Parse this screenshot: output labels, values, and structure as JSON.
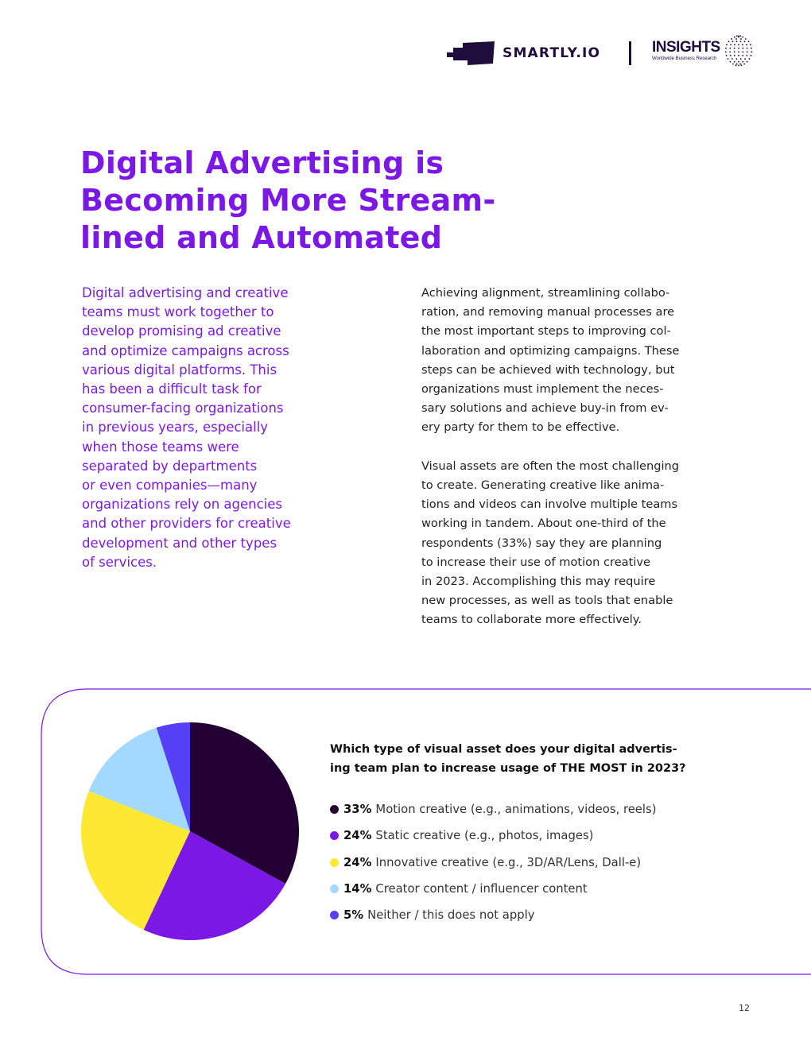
{
  "header": {
    "brand": "SMARTLY.IO",
    "partner": "INSIGHTS",
    "partner_tagline": "Worldwide Business Research"
  },
  "title_lines": [
    "Digital Advertising is",
    "Becoming More Stream-",
    "lined and Automated"
  ],
  "lead_lines": [
    "Digital advertising and creative",
    "teams must work together to",
    "develop promising ad creative",
    "and optimize campaigns across",
    "various digital platforms. This",
    "has been a difficult task for",
    "consumer-facing organizations",
    "in previous years, especially",
    "when those teams were",
    "separated by departments",
    "or even companies—many",
    "organizations rely on agencies",
    "and other providers for creative",
    "development and other types",
    "of services."
  ],
  "body_paragraph_1": [
    "Achieving alignment, streamlining collabo-",
    "ration, and removing manual processes are",
    "the most important steps to improving col-",
    "laboration and optimizing campaigns. These",
    "steps can be achieved with technology, but",
    "organizations must implement the neces-",
    "sary solutions and achieve buy-in from ev-",
    "ery party for them to be effective."
  ],
  "body_paragraph_2": [
    "Visual assets are often the most challenging",
    "to create. Generating creative like anima-",
    "tions and videos can involve multiple teams",
    "working in tandem. About one-third of the",
    "respondents (33%) say they are planning",
    "to increase their use of motion creative",
    "in 2023. Accomplishing this may require",
    "new processes, as well as tools that enable",
    "teams to collaborate more effectively."
  ],
  "chart_data": {
    "type": "pie",
    "title_lines": [
      "Which type of visual asset does your digital advertis-",
      "ing team plan to increase usage of THE MOST in 2023?"
    ],
    "unit": "%",
    "slices": [
      {
        "label": "Motion creative (e.g., animations, videos, reels)",
        "pct_label": "33%",
        "value": 33,
        "color": "#230033"
      },
      {
        "label": "Static creative (e.g., photos, images)",
        "pct_label": "24%",
        "value": 24,
        "color": "#7b18e6"
      },
      {
        "label": "Innovative creative (e.g., 3D/AR/Lens, Dall-e)",
        "pct_label": "24%",
        "value": 24,
        "color": "#fde832"
      },
      {
        "label": "Creator content / influencer content",
        "pct_label": "14%",
        "value": 14,
        "color": "#a3d8ff"
      },
      {
        "label": "Neither / this does not apply",
        "pct_label": "5%",
        "value": 5,
        "color": "#5540f5"
      }
    ],
    "legend_position": "right",
    "start": "top, clockwise"
  },
  "colors": {
    "accent": "#7b18e6",
    "brand_dark": "#1f0e3d"
  },
  "page_number": "12"
}
